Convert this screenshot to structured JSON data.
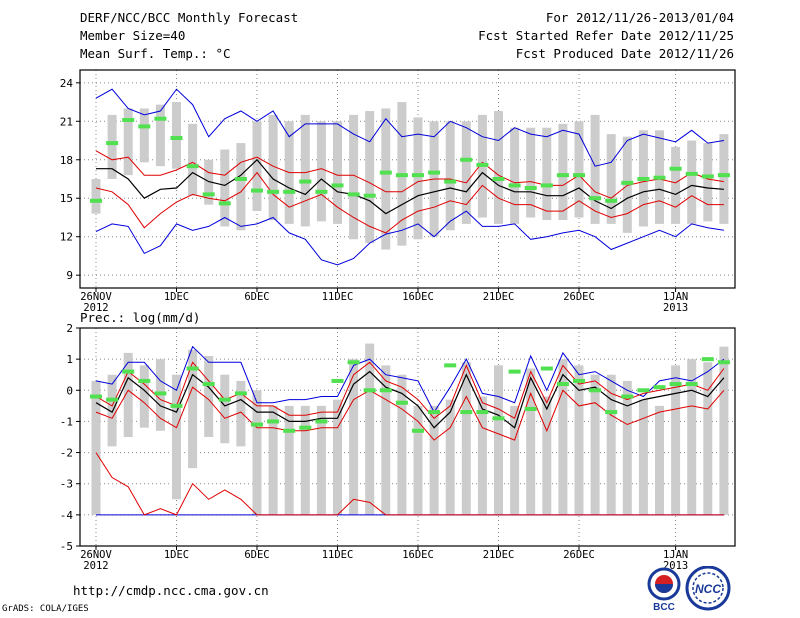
{
  "header": {
    "title": "DERF/NCC/BCC Monthly Forecast",
    "member_size": "Member Size=40",
    "variable": "Mean Surf. Temp.: °C",
    "for_range": "For 2012/11/26-2013/01/04",
    "fcst_started": "Fcst Started Refer Date 2012/11/25",
    "fcst_produced": "Fcst Produced Date 2012/11/26"
  },
  "footer": {
    "url": "http://cmdp.ncc.cma.gov.cn",
    "credit": "GrADS: COLA/IGES",
    "logo_bcc": "BCC",
    "logo_ncc": "NCC"
  },
  "colors": {
    "box": "#cccccc",
    "mean": "#50e050",
    "median": "#000000",
    "inner": "#e00000",
    "outer": "#0000dd",
    "grid": "#888888"
  },
  "chart_data": [
    {
      "type": "box",
      "label": "Mean Surf. Temp.: °C",
      "ylim": [
        8,
        25
      ],
      "yticks": [
        9,
        12,
        15,
        18,
        21,
        24
      ],
      "xticks": [
        {
          "day": 0,
          "label": "26NOV",
          "sub": "2012"
        },
        {
          "day": 5,
          "label": "1DEC"
        },
        {
          "day": 10,
          "label": "6DEC"
        },
        {
          "day": 15,
          "label": "11DEC"
        },
        {
          "day": 20,
          "label": "16DEC"
        },
        {
          "day": 25,
          "label": "21DEC"
        },
        {
          "day": 30,
          "label": "26DEC"
        },
        {
          "day": 36,
          "label": "1JAN",
          "sub": "2013"
        }
      ],
      "days": 40,
      "box_low": [
        13.8,
        16.5,
        16.8,
        17.8,
        17.5,
        17.3,
        15.2,
        14.5,
        12.8,
        12.5,
        14.0,
        13.3,
        13.0,
        12.8,
        13.2,
        13.0,
        11.8,
        11.5,
        11.0,
        11.3,
        11.8,
        12.0,
        12.5,
        13.0,
        13.5,
        13.0,
        13.0,
        13.5,
        13.3,
        13.3,
        13.5,
        13.0,
        13.0,
        12.3,
        12.8,
        13.0,
        13.0,
        13.0,
        13.2,
        13.0
      ],
      "box_high": [
        16.5,
        21.5,
        22.0,
        22.0,
        22.3,
        22.5,
        20.8,
        18.0,
        18.8,
        19.3,
        21.0,
        21.5,
        21.0,
        21.5,
        21.0,
        21.0,
        21.5,
        21.8,
        22.0,
        22.5,
        21.3,
        21.0,
        21.0,
        21.0,
        21.5,
        21.8,
        20.5,
        20.5,
        20.5,
        20.8,
        21.0,
        21.5,
        20.0,
        19.8,
        20.3,
        20.3,
        19.0,
        19.5,
        19.3,
        20.0
      ],
      "mean": [
        14.8,
        19.3,
        21.1,
        20.6,
        21.2,
        19.7,
        17.5,
        15.3,
        14.6,
        16.5,
        15.6,
        15.5,
        15.5,
        16.3,
        15.5,
        16.0,
        15.3,
        15.2,
        17.0,
        16.8,
        16.8,
        17.0,
        16.3,
        18.0,
        17.6,
        16.5,
        16.0,
        15.8,
        16.0,
        16.8,
        16.8,
        15.0,
        14.8,
        16.2,
        16.5,
        16.6,
        17.3,
        16.9,
        16.7,
        16.8
      ],
      "median": [
        17.3,
        17.3,
        16.5,
        15.0,
        15.7,
        15.8,
        17.0,
        16.3,
        16.0,
        16.8,
        18.0,
        16.5,
        15.8,
        15.3,
        16.5,
        15.5,
        15.3,
        14.8,
        13.8,
        14.5,
        15.2,
        15.5,
        15.8,
        15.5,
        17.0,
        16.0,
        15.5,
        15.5,
        15.2,
        15.2,
        15.8,
        14.8,
        14.2,
        15.0,
        15.5,
        15.7,
        15.3,
        16.0,
        15.8,
        15.7
      ],
      "inner_high": [
        18.7,
        18.0,
        18.2,
        16.8,
        16.8,
        17.2,
        17.8,
        17.0,
        16.8,
        17.8,
        18.2,
        17.5,
        17.0,
        17.0,
        17.3,
        16.8,
        16.8,
        16.2,
        15.5,
        15.5,
        16.3,
        16.5,
        16.5,
        16.2,
        17.8,
        16.8,
        16.2,
        16.3,
        16.0,
        16.0,
        16.8,
        15.5,
        15.0,
        16.0,
        16.3,
        16.5,
        16.2,
        17.0,
        16.5,
        16.3
      ],
      "inner_low": [
        15.8,
        15.5,
        14.5,
        12.7,
        13.8,
        14.7,
        15.3,
        15.0,
        14.8,
        15.5,
        17.0,
        15.3,
        14.3,
        14.8,
        15.3,
        14.3,
        13.5,
        12.8,
        12.3,
        13.3,
        14.0,
        14.3,
        14.8,
        14.5,
        16.0,
        15.0,
        14.5,
        14.5,
        14.0,
        14.0,
        14.8,
        14.0,
        13.5,
        13.8,
        14.5,
        14.8,
        14.3,
        15.2,
        14.5,
        14.5
      ],
      "outer_high": [
        22.8,
        23.5,
        22.0,
        21.5,
        21.8,
        23.5,
        22.3,
        19.8,
        21.2,
        21.8,
        21.0,
        21.8,
        19.8,
        20.8,
        20.8,
        20.8,
        20.0,
        19.4,
        21.2,
        19.8,
        20.0,
        19.8,
        21.0,
        20.5,
        19.8,
        19.5,
        20.5,
        20.0,
        19.8,
        20.3,
        20.0,
        17.5,
        17.8,
        19.5,
        20.0,
        19.7,
        19.4,
        20.3,
        19.3,
        19.5
      ],
      "outer_low": [
        12.4,
        13.0,
        12.8,
        10.7,
        11.3,
        13.0,
        12.5,
        12.8,
        13.5,
        12.8,
        13.0,
        13.5,
        12.3,
        11.8,
        10.2,
        9.8,
        10.3,
        11.5,
        12.2,
        12.5,
        13.0,
        12.0,
        13.2,
        14.0,
        12.8,
        12.8,
        13.0,
        11.8,
        12.0,
        12.3,
        12.5,
        12.0,
        11.0,
        11.5,
        12.0,
        12.5,
        12.0,
        13.0,
        12.7,
        12.5
      ]
    },
    {
      "type": "box",
      "label": "Prec.: log(mm/d)",
      "ylim": [
        -5,
        2
      ],
      "yticks": [
        -5,
        -4,
        -3,
        -2,
        -1,
        0,
        1,
        2
      ],
      "xticks": [
        {
          "day": 0,
          "label": "26NOV",
          "sub": "2012"
        },
        {
          "day": 5,
          "label": "1DEC"
        },
        {
          "day": 10,
          "label": "6DEC"
        },
        {
          "day": 15,
          "label": "11DEC"
        },
        {
          "day": 20,
          "label": "16DEC"
        },
        {
          "day": 25,
          "label": "21DEC"
        },
        {
          "day": 30,
          "label": "26DEC"
        },
        {
          "day": 36,
          "label": "1JAN",
          "sub": "2013"
        }
      ],
      "days": 40,
      "box_low": [
        -4.0,
        -1.8,
        -1.5,
        -1.2,
        -1.3,
        -3.5,
        -2.5,
        -1.5,
        -1.7,
        -1.8,
        -4.0,
        -4.0,
        -4.0,
        -4.0,
        -4.0,
        -4.0,
        -4.0,
        -4.0,
        -4.0,
        -4.0,
        -4.0,
        -4.0,
        -4.0,
        -4.0,
        -4.0,
        -4.0,
        -4.0,
        -4.0,
        -4.0,
        -4.0,
        -4.0,
        -4.0,
        -4.0,
        -4.0,
        -4.0,
        -4.0,
        -4.0,
        -4.0,
        -4.0,
        -4.0
      ],
      "box_high": [
        0.3,
        0.5,
        1.2,
        0.8,
        1.0,
        0.5,
        1.3,
        1.1,
        0.5,
        0.3,
        0.0,
        -0.5,
        -0.5,
        -0.5,
        -0.5,
        -0.3,
        1.0,
        1.5,
        0.8,
        0.5,
        -0.5,
        -0.5,
        -0.3,
        0.9,
        -0.2,
        0.8,
        -0.5,
        0.7,
        -0.2,
        1.0,
        0.8,
        0.5,
        0.5,
        0.3,
        -0.3,
        -0.5,
        0.8,
        1.0,
        0.9,
        1.4
      ],
      "mean": [
        -0.2,
        -0.3,
        0.6,
        0.3,
        -0.1,
        -0.5,
        0.7,
        0.2,
        -0.3,
        -0.1,
        -1.1,
        -1.0,
        -1.3,
        -1.2,
        -1.0,
        0.3,
        0.9,
        0.0,
        0.0,
        -0.4,
        -1.3,
        -0.7,
        0.8,
        -0.7,
        -0.7,
        -0.9,
        0.6,
        -0.6,
        0.7,
        0.2,
        0.3,
        0.0,
        -0.7,
        -0.2,
        0.0,
        0.1,
        0.2,
        0.2,
        1.0,
        0.9
      ],
      "median": [
        -0.4,
        -0.7,
        0.4,
        0.0,
        -0.5,
        -0.7,
        0.5,
        0.1,
        -0.5,
        -0.3,
        -0.7,
        -0.7,
        -1.0,
        -1.0,
        -0.9,
        -0.9,
        0.2,
        0.6,
        0.1,
        -0.1,
        -0.5,
        -1.2,
        -0.7,
        0.5,
        -0.6,
        -0.8,
        -1.2,
        0.4,
        -0.6,
        0.5,
        0.0,
        0.1,
        -0.3,
        -0.5,
        -0.3,
        -0.2,
        -0.1,
        0.0,
        -0.2,
        0.4
      ],
      "inner_high": [
        -0.2,
        -0.5,
        0.6,
        0.2,
        -0.3,
        -0.5,
        0.9,
        0.3,
        -0.3,
        -0.1,
        -0.5,
        -0.5,
        -0.8,
        -0.8,
        -0.7,
        -0.7,
        0.5,
        0.9,
        0.3,
        0.1,
        -0.3,
        -0.9,
        -0.5,
        0.8,
        -0.4,
        -0.6,
        -0.9,
        0.6,
        -0.4,
        0.8,
        0.2,
        0.3,
        -0.1,
        -0.3,
        -0.1,
        0.0,
        0.1,
        0.2,
        0.0,
        0.7
      ],
      "inner_low": [
        -0.7,
        -0.9,
        0.0,
        -0.4,
        -0.9,
        -1.2,
        0.1,
        -0.3,
        -0.9,
        -0.7,
        -1.2,
        -1.2,
        -1.3,
        -1.3,
        -1.2,
        -1.2,
        -0.3,
        0.0,
        -0.3,
        -0.6,
        -1.0,
        -1.6,
        -1.2,
        -0.2,
        -1.2,
        -1.4,
        -1.6,
        -0.1,
        -1.3,
        0.0,
        -0.5,
        -0.4,
        -0.8,
        -1.1,
        -0.9,
        -0.7,
        -0.6,
        -0.5,
        -0.6,
        0.0
      ],
      "outer_high": [
        0.3,
        0.2,
        0.9,
        0.9,
        0.3,
        0.0,
        1.4,
        0.9,
        0.9,
        0.9,
        -0.4,
        -0.4,
        -0.3,
        -0.3,
        -0.2,
        -0.2,
        0.8,
        1.0,
        0.5,
        0.4,
        0.3,
        -0.7,
        0.1,
        1.0,
        -0.1,
        -0.2,
        -0.4,
        1.1,
        0.0,
        1.2,
        0.5,
        0.6,
        0.3,
        0.0,
        -0.2,
        0.3,
        0.4,
        0.3,
        0.6,
        1.0
      ],
      "outer_low": [
        -4.0,
        -4.0,
        -4.0,
        -4.0,
        -4.0,
        -4.0,
        -4.0,
        -4.0,
        -4.0,
        -4.0,
        -4.0,
        -4.0,
        -4.0,
        -4.0,
        -4.0,
        -4.0,
        -4.0,
        -4.0,
        -4.0,
        -4.0,
        -4.0,
        -4.0,
        -4.0,
        -4.0,
        -4.0,
        -4.0,
        -4.0,
        -4.0,
        -4.0,
        -4.0,
        -4.0,
        -4.0,
        -4.0,
        -4.0,
        -4.0,
        -4.0,
        -4.0,
        -4.0,
        -4.0,
        -4.0
      ],
      "red_extra": [
        -2.0,
        -2.8,
        -3.1,
        -4.0,
        -3.8,
        -4.0,
        -3.0,
        -3.5,
        -3.2,
        -3.5,
        -4.0,
        -4.0,
        -4.0,
        -4.0,
        -4.0,
        -4.0,
        -3.5,
        -3.6,
        -4.0,
        -4.0,
        -4.0,
        -4.0,
        -4.0,
        -4.0,
        -4.0,
        -4.0,
        -4.0,
        -4.0,
        -4.0,
        -4.0,
        -4.0,
        -4.0,
        -4.0,
        -4.0,
        -4.0,
        -4.0,
        -4.0,
        -4.0,
        -4.0,
        -4.0
      ]
    }
  ]
}
